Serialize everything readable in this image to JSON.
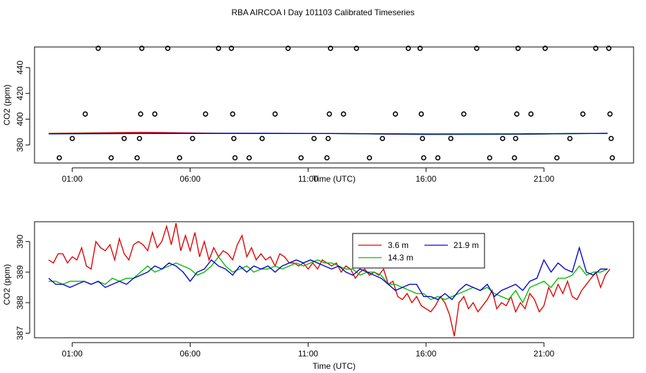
{
  "title": "RBA AIRCOA I  Day 101103  Calibrated Timeseries",
  "chart_data": [
    {
      "type": "scatter+line",
      "name": "top",
      "xlabel": "Time (UTC)",
      "ylabel": "CO2 (ppm)",
      "xlim": [
        -0.6,
        24.8
      ],
      "ylim": [
        366,
        456
      ],
      "xticks": [
        1,
        6,
        11,
        16,
        21
      ],
      "xtick_labels": [
        "01:00",
        "06:00",
        "11:00",
        "16:00",
        "21:00"
      ],
      "yticks": [
        380,
        400,
        420,
        440
      ],
      "ytick_labels": [
        "380",
        "400",
        "420",
        "440"
      ],
      "markers": [
        {
          "x": 0.45,
          "y": 370
        },
        {
          "x": 1.0,
          "y": 385
        },
        {
          "x": 1.55,
          "y": 404
        },
        {
          "x": 2.1,
          "y": 455
        },
        {
          "x": 2.65,
          "y": 370
        },
        {
          "x": 3.2,
          "y": 385
        },
        {
          "x": 3.75,
          "y": 370
        },
        {
          "x": 3.85,
          "y": 385
        },
        {
          "x": 3.9,
          "y": 404
        },
        {
          "x": 3.95,
          "y": 455
        },
        {
          "x": 4.5,
          "y": 404
        },
        {
          "x": 5.05,
          "y": 455
        },
        {
          "x": 5.55,
          "y": 370
        },
        {
          "x": 6.1,
          "y": 385
        },
        {
          "x": 6.65,
          "y": 404
        },
        {
          "x": 7.2,
          "y": 455
        },
        {
          "x": 7.75,
          "y": 455
        },
        {
          "x": 7.8,
          "y": 404
        },
        {
          "x": 7.85,
          "y": 385
        },
        {
          "x": 7.9,
          "y": 370
        },
        {
          "x": 8.5,
          "y": 370
        },
        {
          "x": 9.05,
          "y": 385
        },
        {
          "x": 9.6,
          "y": 404
        },
        {
          "x": 10.15,
          "y": 455
        },
        {
          "x": 10.7,
          "y": 370
        },
        {
          "x": 11.25,
          "y": 385
        },
        {
          "x": 11.8,
          "y": 370
        },
        {
          "x": 11.85,
          "y": 385
        },
        {
          "x": 11.9,
          "y": 404
        },
        {
          "x": 11.95,
          "y": 455
        },
        {
          "x": 12.5,
          "y": 404
        },
        {
          "x": 13.05,
          "y": 455
        },
        {
          "x": 13.6,
          "y": 370
        },
        {
          "x": 14.15,
          "y": 385
        },
        {
          "x": 14.7,
          "y": 404
        },
        {
          "x": 15.25,
          "y": 455
        },
        {
          "x": 15.75,
          "y": 455
        },
        {
          "x": 15.8,
          "y": 404
        },
        {
          "x": 15.85,
          "y": 385
        },
        {
          "x": 15.9,
          "y": 370
        },
        {
          "x": 16.5,
          "y": 370
        },
        {
          "x": 17.05,
          "y": 385
        },
        {
          "x": 17.6,
          "y": 404
        },
        {
          "x": 18.15,
          "y": 455
        },
        {
          "x": 18.7,
          "y": 370
        },
        {
          "x": 19.25,
          "y": 385
        },
        {
          "x": 19.75,
          "y": 370
        },
        {
          "x": 19.8,
          "y": 385
        },
        {
          "x": 19.85,
          "y": 404
        },
        {
          "x": 19.9,
          "y": 455
        },
        {
          "x": 20.45,
          "y": 404
        },
        {
          "x": 21.05,
          "y": 455
        },
        {
          "x": 21.55,
          "y": 370
        },
        {
          "x": 22.1,
          "y": 385
        },
        {
          "x": 22.65,
          "y": 404
        },
        {
          "x": 23.2,
          "y": 455
        },
        {
          "x": 23.75,
          "y": 455
        },
        {
          "x": 23.8,
          "y": 404
        },
        {
          "x": 23.85,
          "y": 385
        },
        {
          "x": 23.9,
          "y": 370
        }
      ],
      "series": [
        {
          "name": "3.6 m",
          "color": "#dd0000",
          "x": [
            0,
            2,
            4,
            6,
            8,
            10,
            12,
            14,
            16,
            18,
            20,
            22,
            23.7
          ],
          "y": [
            389,
            389.4,
            389.8,
            389.3,
            388.9,
            388.9,
            388.9,
            388.5,
            388.1,
            388.2,
            388.3,
            388.7,
            389
          ]
        },
        {
          "name": "14.3 m",
          "color": "#00bb00",
          "x": [
            0,
            4,
            8,
            12,
            16,
            20,
            23.7
          ],
          "y": [
            388.7,
            388.9,
            389,
            388.9,
            388.3,
            388.4,
            389
          ]
        },
        {
          "name": "21.9 m",
          "color": "#0000cc",
          "x": [
            0,
            4,
            8,
            12,
            16,
            20,
            23.7
          ],
          "y": [
            388.6,
            388.9,
            389.1,
            388.9,
            388.5,
            388.6,
            389
          ]
        }
      ]
    },
    {
      "type": "line",
      "name": "bottom",
      "xlabel": "Time (UTC)",
      "ylabel": "CO2 (ppm)",
      "xlim": [
        -0.6,
        24.8
      ],
      "ylim": [
        386.85,
        390.65
      ],
      "xticks": [
        1,
        6,
        11,
        16,
        21
      ],
      "xtick_labels": [
        "01:00",
        "06:00",
        "11:00",
        "16:00",
        "21:00"
      ],
      "yticks": [
        387,
        388,
        389,
        390
      ],
      "ytick_labels": [
        "387",
        "388",
        "389",
        "390"
      ],
      "legend_position": "top-center",
      "series": [
        {
          "name": "3.6 m",
          "color": "#dd0000",
          "x": [
            0,
            0.2,
            0.4,
            0.6,
            0.8,
            1.0,
            1.2,
            1.4,
            1.6,
            1.8,
            2.0,
            2.2,
            2.4,
            2.6,
            2.8,
            3.0,
            3.2,
            3.4,
            3.6,
            3.8,
            4.0,
            4.2,
            4.4,
            4.6,
            4.8,
            5.0,
            5.2,
            5.4,
            5.6,
            5.8,
            6.0,
            6.2,
            6.4,
            6.6,
            6.8,
            7.0,
            7.2,
            7.4,
            7.6,
            7.8,
            8.0,
            8.2,
            8.4,
            8.6,
            8.8,
            9.0,
            9.2,
            9.4,
            9.6,
            9.8,
            10.0,
            10.2,
            10.4,
            10.6,
            10.8,
            11.0,
            11.2,
            11.4,
            11.6,
            11.8,
            12.0,
            12.2,
            12.4,
            12.6,
            12.8,
            13.0,
            13.2,
            13.4,
            13.6,
            13.8,
            14.0,
            14.2,
            14.4,
            14.6,
            14.8,
            15.0,
            15.2,
            15.4,
            15.6,
            15.8,
            16.0,
            16.2,
            16.4,
            16.6,
            16.8,
            17.0,
            17.2,
            17.4,
            17.6,
            17.8,
            18.0,
            18.2,
            18.4,
            18.6,
            18.8,
            19.0,
            19.2,
            19.4,
            19.6,
            19.8,
            20.0,
            20.2,
            20.4,
            20.6,
            20.8,
            21.0,
            21.2,
            21.4,
            21.6,
            21.8,
            22.0,
            22.2,
            22.4,
            22.6,
            22.8,
            23.0,
            23.2,
            23.4,
            23.6,
            23.8
          ],
          "y": [
            389.4,
            389.3,
            389.6,
            389.6,
            389.3,
            389.5,
            389.4,
            389.8,
            389.2,
            389.1,
            390.0,
            389.8,
            389.7,
            389.9,
            389.4,
            390.1,
            389.6,
            389.4,
            389.9,
            390.0,
            389.9,
            389.7,
            390.3,
            389.8,
            390.0,
            390.5,
            389.9,
            390.6,
            389.7,
            390.2,
            389.7,
            390.3,
            389.5,
            390.0,
            389.4,
            389.8,
            389.5,
            389.7,
            389.6,
            389.4,
            389.9,
            390.2,
            389.5,
            389.8,
            389.4,
            389.6,
            389.4,
            389.5,
            389.2,
            389.6,
            389.5,
            389.3,
            389.3,
            389.2,
            389.3,
            389.1,
            389.3,
            389.1,
            389.4,
            389.3,
            389.2,
            389.3,
            389.0,
            389.2,
            389.1,
            388.8,
            389.0,
            389.1,
            388.9,
            389.0,
            388.9,
            389.1,
            388.6,
            388.7,
            388.2,
            388.1,
            388.3,
            388.0,
            388.2,
            387.9,
            387.8,
            387.7,
            387.9,
            388.2,
            388.0,
            387.6,
            386.9,
            388.0,
            388.2,
            387.8,
            388.0,
            387.7,
            387.9,
            388.1,
            388.4,
            387.8,
            388.0,
            387.9,
            388.2,
            387.7,
            388.0,
            387.8,
            388.3,
            388.1,
            387.7,
            387.9,
            388.5,
            388.2,
            388.6,
            388.3,
            388.7,
            388.2,
            388.1,
            388.4,
            388.6,
            388.8,
            389.0,
            388.5,
            388.9,
            389.1
          ]
        },
        {
          "name": "14.3 m",
          "color": "#00bb00",
          "x": [
            0,
            0.3,
            0.6,
            0.9,
            1.2,
            1.5,
            1.8,
            2.1,
            2.4,
            2.7,
            3.0,
            3.3,
            3.6,
            3.9,
            4.2,
            4.5,
            4.8,
            5.1,
            5.4,
            5.7,
            6.0,
            6.3,
            6.6,
            6.9,
            7.2,
            7.5,
            7.8,
            8.1,
            8.4,
            8.7,
            9.0,
            9.3,
            9.6,
            9.9,
            10.2,
            10.5,
            10.8,
            11.1,
            11.4,
            11.7,
            12.0,
            12.3,
            12.6,
            12.9,
            13.2,
            13.5,
            13.8,
            14.1,
            14.4,
            14.7,
            15.0,
            15.3,
            15.6,
            15.9,
            16.2,
            16.5,
            16.8,
            17.1,
            17.4,
            17.7,
            18.0,
            18.3,
            18.6,
            18.9,
            19.2,
            19.5,
            19.8,
            20.1,
            20.4,
            20.7,
            21.0,
            21.3,
            21.6,
            21.9,
            22.2,
            22.5,
            22.8,
            23.1,
            23.4,
            23.7
          ],
          "y": [
            388.7,
            388.7,
            388.6,
            388.7,
            388.7,
            388.7,
            388.6,
            388.7,
            388.6,
            388.8,
            388.7,
            388.8,
            388.8,
            389.0,
            389.2,
            389.0,
            389.1,
            389.2,
            389.3,
            389.2,
            389.1,
            388.9,
            389.0,
            389.2,
            389.5,
            389.2,
            389.0,
            389.1,
            389.2,
            389.0,
            389.1,
            389.1,
            389.2,
            389.1,
            389.2,
            389.3,
            389.2,
            389.3,
            389.4,
            389.3,
            389.3,
            389.2,
            389.1,
            389.1,
            388.9,
            389.0,
            389.0,
            388.9,
            388.6,
            388.6,
            388.5,
            388.4,
            388.3,
            388.3,
            388.1,
            388.2,
            388.1,
            388.2,
            388.3,
            388.4,
            388.5,
            388.4,
            388.5,
            388.3,
            388.2,
            388.1,
            388.4,
            388.0,
            388.5,
            388.6,
            388.7,
            388.5,
            388.8,
            388.8,
            388.9,
            389.2,
            388.9,
            389.0,
            389.0,
            389.1
          ]
        },
        {
          "name": "21.9 m",
          "color": "#0000cc",
          "x": [
            0,
            0.3,
            0.6,
            0.9,
            1.2,
            1.5,
            1.8,
            2.1,
            2.4,
            2.7,
            3.0,
            3.3,
            3.6,
            3.9,
            4.2,
            4.5,
            4.8,
            5.1,
            5.4,
            5.7,
            6.0,
            6.3,
            6.6,
            6.9,
            7.2,
            7.5,
            7.8,
            8.1,
            8.4,
            8.7,
            9.0,
            9.3,
            9.6,
            9.9,
            10.2,
            10.5,
            10.8,
            11.1,
            11.4,
            11.7,
            12.0,
            12.3,
            12.6,
            12.9,
            13.2,
            13.5,
            13.8,
            14.1,
            14.4,
            14.7,
            15.0,
            15.3,
            15.6,
            15.9,
            16.2,
            16.5,
            16.8,
            17.1,
            17.4,
            17.7,
            18.0,
            18.3,
            18.6,
            18.9,
            19.2,
            19.5,
            19.8,
            20.1,
            20.4,
            20.7,
            21.0,
            21.3,
            21.6,
            21.9,
            22.2,
            22.5,
            22.8,
            23.1,
            23.4,
            23.7
          ],
          "y": [
            388.8,
            388.6,
            388.6,
            388.5,
            388.6,
            388.7,
            388.6,
            388.7,
            388.5,
            388.6,
            388.7,
            388.6,
            388.8,
            388.9,
            389.0,
            389.2,
            389.1,
            389.3,
            389.2,
            389.0,
            388.7,
            389.0,
            389.1,
            389.4,
            389.2,
            389.1,
            388.9,
            389.2,
            389.0,
            389.2,
            389.1,
            389.2,
            389.0,
            389.2,
            389.3,
            389.4,
            389.3,
            389.4,
            389.3,
            389.2,
            389.1,
            389.2,
            389.0,
            388.9,
            389.1,
            389.0,
            388.9,
            388.8,
            388.6,
            388.4,
            388.5,
            388.6,
            388.6,
            388.2,
            388.2,
            388.1,
            388.3,
            388.1,
            388.4,
            388.6,
            388.5,
            388.4,
            388.6,
            388.2,
            388.4,
            388.5,
            388.6,
            388.4,
            388.7,
            388.8,
            389.4,
            389.0,
            389.3,
            389.1,
            389.0,
            389.8,
            389.0,
            388.9,
            389.1,
            389.1
          ]
        }
      ]
    }
  ]
}
